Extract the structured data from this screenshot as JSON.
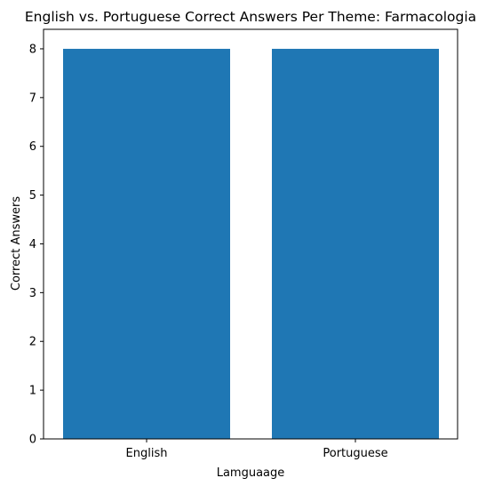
{
  "chart_data": {
    "type": "bar",
    "title": "English vs. Portuguese Correct Answers Per Theme: Farmacologia",
    "xlabel": "Lamguaage",
    "ylabel": "Correct Answers",
    "categories": [
      "English",
      "Portuguese"
    ],
    "values": [
      8,
      8
    ],
    "ylim": [
      0,
      8.4
    ],
    "yticks": [
      "0",
      "1",
      "2",
      "3",
      "4",
      "5",
      "6",
      "7",
      "8"
    ],
    "bar_color": "#1f77b4",
    "grid": false,
    "legend": "none"
  }
}
